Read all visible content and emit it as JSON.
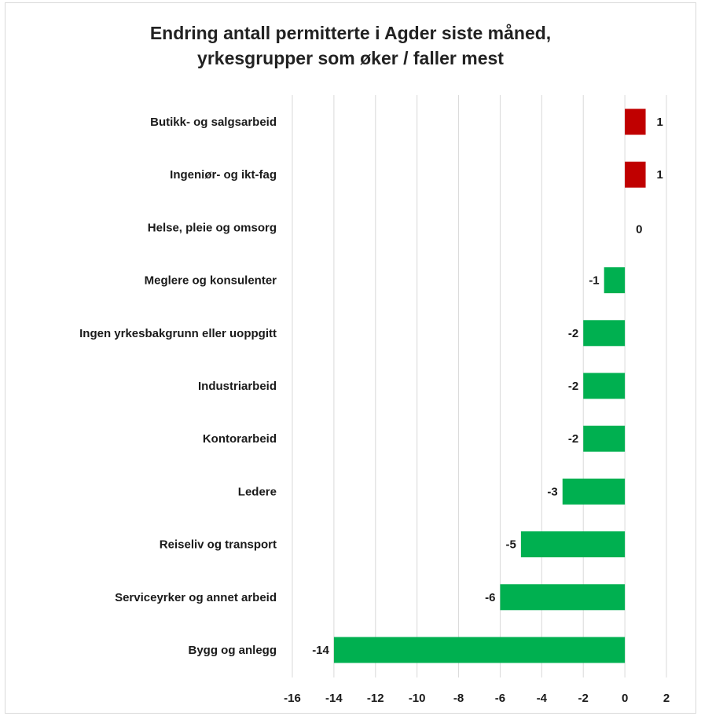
{
  "chart_data": {
    "type": "bar",
    "orientation": "horizontal",
    "title": [
      "Endring antall permitterte i Agder siste måned,",
      "yrkesgrupper som øker / faller mest"
    ],
    "categories": [
      "Butikk- og salgsarbeid",
      "Ingeniør- og ikt-fag",
      "Helse, pleie og omsorg",
      "Meglere og konsulenter",
      "Ingen yrkesbakgrunn eller uoppgitt",
      "Industriarbeid",
      "Kontorarbeid",
      "Ledere",
      "Reiseliv og transport",
      "Serviceyrker og annet arbeid",
      "Bygg og anlegg"
    ],
    "values": [
      1,
      1,
      0,
      -1,
      -2,
      -2,
      -2,
      -3,
      -5,
      -6,
      -14
    ],
    "data_labels": [
      "1",
      "1",
      "0",
      "-1",
      "-2",
      "-2",
      "-2",
      "-3",
      "-5",
      "-6",
      "-14"
    ],
    "xlim": [
      -16,
      2
    ],
    "x_ticks": [
      -16,
      -14,
      -12,
      -10,
      -8,
      -6,
      -4,
      -2,
      0,
      2
    ],
    "x_tick_labels": [
      "-16",
      "-14",
      "-12",
      "-10",
      "-8",
      "-6",
      "-4",
      "-2",
      "0",
      "2"
    ],
    "grid": "vertical",
    "legend": "none",
    "colors": {
      "positive": "#c00000",
      "negative": "#00b050",
      "grid": "#d9d9d9",
      "text": "#1a1a1a"
    }
  }
}
